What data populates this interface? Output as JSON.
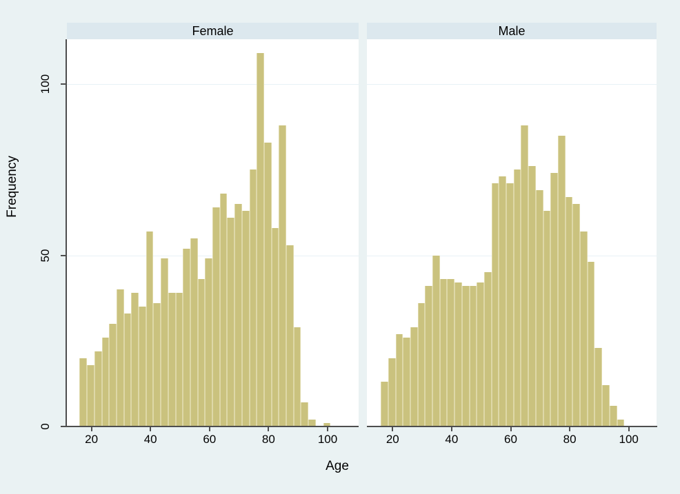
{
  "figure": {
    "background": "#eaf2f3",
    "plot_background": "#ffffff",
    "header_background": "#dce8ee",
    "bar_fill": "#cac27e",
    "bar_edge": "#ded8a8",
    "grid_color": "#e7f1f6",
    "axis_color": "#4d4d4d",
    "text_color": "#000000"
  },
  "chart_data": {
    "type": "bar",
    "subtype": "histogram-by-panel",
    "title": "",
    "xlabel": "Age",
    "ylabel": "Frequency",
    "bin_start_age": 16,
    "bin_width_years": 2.5,
    "x_ticks": [
      20,
      40,
      60,
      80,
      100
    ],
    "y_ticks": [
      0,
      50,
      100
    ],
    "y_gridlines": [
      50,
      100
    ],
    "ylim": [
      0,
      113
    ],
    "xlim": [
      15.7,
      110
    ],
    "grid": "on",
    "legend": "none",
    "panels": [
      {
        "title": "Female",
        "values": [
          20,
          18,
          22,
          26,
          30,
          40,
          33,
          39,
          35,
          57,
          36,
          49,
          39,
          39,
          52,
          55,
          43,
          49,
          64,
          68,
          61,
          65,
          63,
          75,
          109,
          83,
          58,
          88,
          53,
          29,
          7,
          2,
          0,
          1
        ]
      },
      {
        "title": "Male",
        "values": [
          13,
          20,
          27,
          26,
          29,
          36,
          41,
          50,
          43,
          43,
          42,
          41,
          41,
          42,
          45,
          71,
          73,
          71,
          75,
          88,
          76,
          69,
          63,
          74,
          85,
          67,
          65,
          57,
          48,
          23,
          12,
          6,
          2
        ]
      }
    ]
  }
}
